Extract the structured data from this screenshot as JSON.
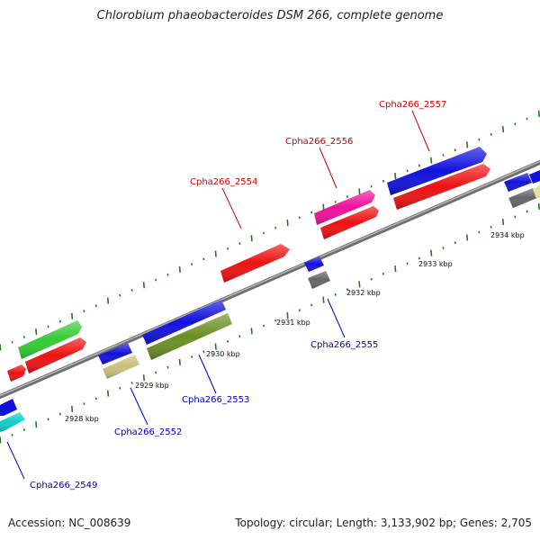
{
  "title": "Chlorobium phaeobacteroides DSM 266, complete genome",
  "footer": {
    "accession": "Accession: NC_008639",
    "topology": "Topology: circular; Length: 3,133,902 bp; Genes: 2,705"
  },
  "colors": {
    "backbone": "#8c8c8c",
    "tick": "#1f7a1f",
    "label_forward": "#cc0000",
    "label_reverse": "#0000bb",
    "red": "#ee1111",
    "blue": "#1111dd",
    "green": "#33cc33",
    "magenta": "#ee1199",
    "olive": "#6b8e23",
    "khaki": "#c8c07a",
    "gray": "#666666",
    "cyan": "#11cccc",
    "paleyellow": "#e8e0a0"
  },
  "scale_labels": [
    {
      "text": "2928 kbp"
    },
    {
      "text": "2929 kbp"
    },
    {
      "text": "2930 kbp"
    },
    {
      "text": "2931 kbp"
    },
    {
      "text": "2932 kbp"
    },
    {
      "text": "2933 kbp"
    },
    {
      "text": "2934 kbp"
    }
  ],
  "gene_labels": [
    {
      "text": "Cpha266_2557",
      "strand": "forward"
    },
    {
      "text": "Cpha266_2556",
      "strand": "forward"
    },
    {
      "text": "Cpha266_2554",
      "strand": "forward"
    },
    {
      "text": "Cpha266_2555",
      "strand": "reverse"
    },
    {
      "text": "Cpha266_2553",
      "strand": "reverse"
    },
    {
      "text": "Cpha266_2552",
      "strand": "reverse"
    },
    {
      "text": "Cpha266_2549",
      "strand": "reverse"
    }
  ]
}
